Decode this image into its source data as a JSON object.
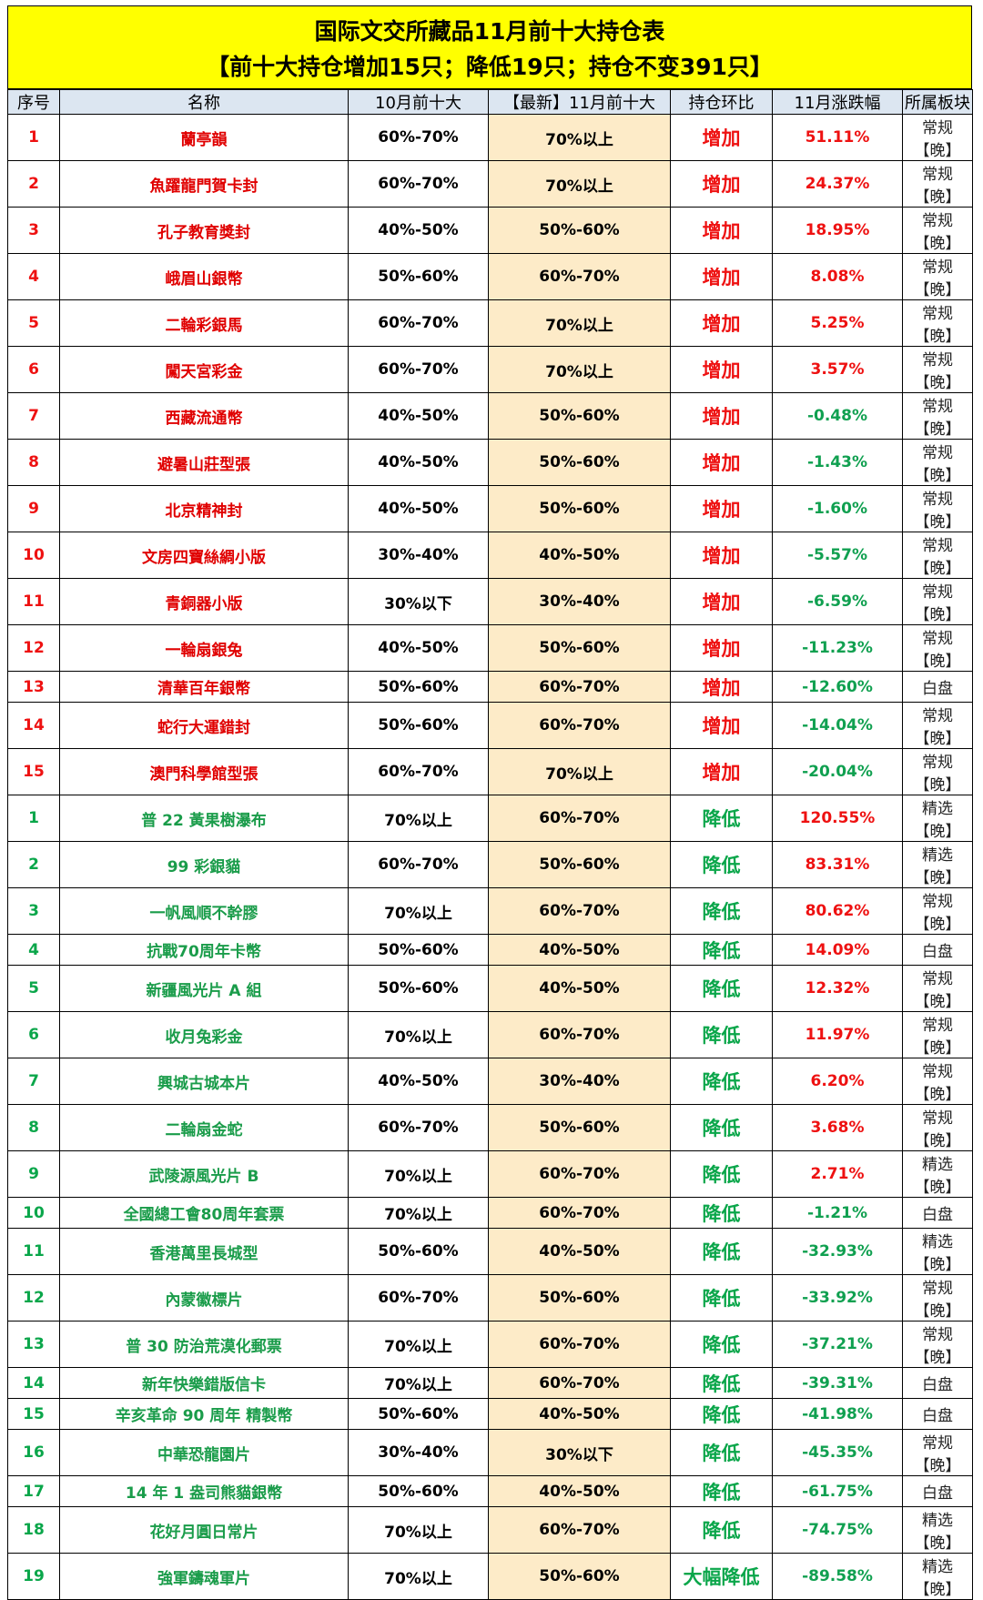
{
  "header": {
    "title": "国际文交所藏品11月前十大持仓表",
    "subtitle": "【前十大持仓增加15只；降低19只；持仓不变391只】"
  },
  "columns": [
    "序号",
    "名称",
    "10月前十大",
    "【最新】11月前十大",
    "持仓环比",
    "11月涨跌幅",
    "所属板块"
  ],
  "colors": {
    "title_bg": "#ffff00",
    "header_bg": "#dce6f1",
    "latest_bg": "#fdebc8",
    "up": "#ee1111",
    "down": "#0aa64a"
  },
  "rows": [
    {
      "idx": "1",
      "name": "蘭亭韻",
      "oct": "60%-70%",
      "nov": "70%以上",
      "change": "增加",
      "pct": "51.11%",
      "sector": "常规【晚】",
      "group": "inc",
      "dir": "up"
    },
    {
      "idx": "2",
      "name": "魚躍龍門賀卡封",
      "oct": "60%-70%",
      "nov": "70%以上",
      "change": "增加",
      "pct": "24.37%",
      "sector": "常规【晚】",
      "group": "inc",
      "dir": "up"
    },
    {
      "idx": "3",
      "name": "孔子教育獎封",
      "oct": "40%-50%",
      "nov": "50%-60%",
      "change": "增加",
      "pct": "18.95%",
      "sector": "常规【晚】",
      "group": "inc",
      "dir": "up"
    },
    {
      "idx": "4",
      "name": "峨眉山銀幣",
      "oct": "50%-60%",
      "nov": "60%-70%",
      "change": "增加",
      "pct": "8.08%",
      "sector": "常规【晚】",
      "group": "inc",
      "dir": "up"
    },
    {
      "idx": "5",
      "name": "二輪彩銀馬",
      "oct": "60%-70%",
      "nov": "70%以上",
      "change": "增加",
      "pct": "5.25%",
      "sector": "常规【晚】",
      "group": "inc",
      "dir": "up"
    },
    {
      "idx": "6",
      "name": "闖天宮彩金",
      "oct": "60%-70%",
      "nov": "70%以上",
      "change": "增加",
      "pct": "3.57%",
      "sector": "常规【晚】",
      "group": "inc",
      "dir": "up"
    },
    {
      "idx": "7",
      "name": "西藏流通幣",
      "oct": "40%-50%",
      "nov": "50%-60%",
      "change": "增加",
      "pct": "-0.48%",
      "sector": "常规【晚】",
      "group": "inc",
      "dir": "down"
    },
    {
      "idx": "8",
      "name": "避暑山莊型張",
      "oct": "40%-50%",
      "nov": "50%-60%",
      "change": "增加",
      "pct": "-1.43%",
      "sector": "常规【晚】",
      "group": "inc",
      "dir": "down"
    },
    {
      "idx": "9",
      "name": "北京精神封",
      "oct": "40%-50%",
      "nov": "50%-60%",
      "change": "增加",
      "pct": "-1.60%",
      "sector": "常规【晚】",
      "group": "inc",
      "dir": "down"
    },
    {
      "idx": "10",
      "name": "文房四寶絲綢小版",
      "oct": "30%-40%",
      "nov": "40%-50%",
      "change": "增加",
      "pct": "-5.57%",
      "sector": "常规【晚】",
      "group": "inc",
      "dir": "down"
    },
    {
      "idx": "11",
      "name": "青銅器小版",
      "oct": "30%以下",
      "nov": "30%-40%",
      "change": "增加",
      "pct": "-6.59%",
      "sector": "常规【晚】",
      "group": "inc",
      "dir": "down"
    },
    {
      "idx": "12",
      "name": "一輪扇銀兔",
      "oct": "40%-50%",
      "nov": "50%-60%",
      "change": "增加",
      "pct": "-11.23%",
      "sector": "常规【晚】",
      "group": "inc",
      "dir": "down"
    },
    {
      "idx": "13",
      "name": "清華百年銀幣",
      "oct": "50%-60%",
      "nov": "60%-70%",
      "change": "增加",
      "pct": "-12.60%",
      "sector": "白盘",
      "group": "inc",
      "dir": "down"
    },
    {
      "idx": "14",
      "name": "蛇行大運錯封",
      "oct": "50%-60%",
      "nov": "60%-70%",
      "change": "增加",
      "pct": "-14.04%",
      "sector": "常规【晚】",
      "group": "inc",
      "dir": "down"
    },
    {
      "idx": "15",
      "name": "澳門科學館型張",
      "oct": "60%-70%",
      "nov": "70%以上",
      "change": "增加",
      "pct": "-20.04%",
      "sector": "常规【晚】",
      "group": "inc",
      "dir": "down"
    },
    {
      "idx": "1",
      "name": "普 22 黃果樹瀑布",
      "oct": "70%以上",
      "nov": "60%-70%",
      "change": "降低",
      "pct": "120.55%",
      "sector": "精选【晚】",
      "group": "dec",
      "dir": "up"
    },
    {
      "idx": "2",
      "name": "99 彩銀貓",
      "oct": "60%-70%",
      "nov": "50%-60%",
      "change": "降低",
      "pct": "83.31%",
      "sector": "精选【晚】",
      "group": "dec",
      "dir": "up"
    },
    {
      "idx": "3",
      "name": "一帆風順不幹膠",
      "oct": "70%以上",
      "nov": "60%-70%",
      "change": "降低",
      "pct": "80.62%",
      "sector": "常规【晚】",
      "group": "dec",
      "dir": "up"
    },
    {
      "idx": "4",
      "name": "抗戰70周年卡幣",
      "oct": "50%-60%",
      "nov": "40%-50%",
      "change": "降低",
      "pct": "14.09%",
      "sector": "白盘",
      "group": "dec",
      "dir": "up"
    },
    {
      "idx": "5",
      "name": "新疆風光片 A 組",
      "oct": "50%-60%",
      "nov": "40%-50%",
      "change": "降低",
      "pct": "12.32%",
      "sector": "常规【晚】",
      "group": "dec",
      "dir": "up"
    },
    {
      "idx": "6",
      "name": "收月兔彩金",
      "oct": "70%以上",
      "nov": "60%-70%",
      "change": "降低",
      "pct": "11.97%",
      "sector": "常规【晚】",
      "group": "dec",
      "dir": "up"
    },
    {
      "idx": "7",
      "name": "興城古城本片",
      "oct": "40%-50%",
      "nov": "30%-40%",
      "change": "降低",
      "pct": "6.20%",
      "sector": "常规【晚】",
      "group": "dec",
      "dir": "up"
    },
    {
      "idx": "8",
      "name": "二輪扇金蛇",
      "oct": "60%-70%",
      "nov": "50%-60%",
      "change": "降低",
      "pct": "3.68%",
      "sector": "常规【晚】",
      "group": "dec",
      "dir": "up"
    },
    {
      "idx": "9",
      "name": "武陵源風光片 B",
      "oct": "70%以上",
      "nov": "60%-70%",
      "change": "降低",
      "pct": "2.71%",
      "sector": "精选【晚】",
      "group": "dec",
      "dir": "up"
    },
    {
      "idx": "10",
      "name": "全國總工會80周年套票",
      "oct": "70%以上",
      "nov": "60%-70%",
      "change": "降低",
      "pct": "-1.21%",
      "sector": "白盘",
      "group": "dec",
      "dir": "down"
    },
    {
      "idx": "11",
      "name": "香港萬里長城型",
      "oct": "50%-60%",
      "nov": "40%-50%",
      "change": "降低",
      "pct": "-32.93%",
      "sector": "精选【晚】",
      "group": "dec",
      "dir": "down"
    },
    {
      "idx": "12",
      "name": "內蒙徽標片",
      "oct": "60%-70%",
      "nov": "50%-60%",
      "change": "降低",
      "pct": "-33.92%",
      "sector": "常规【晚】",
      "group": "dec",
      "dir": "down"
    },
    {
      "idx": "13",
      "name": "普 30 防治荒漠化郵票",
      "oct": "70%以上",
      "nov": "60%-70%",
      "change": "降低",
      "pct": "-37.21%",
      "sector": "常规【晚】",
      "group": "dec",
      "dir": "down"
    },
    {
      "idx": "14",
      "name": "新年快樂錯版信卡",
      "oct": "70%以上",
      "nov": "60%-70%",
      "change": "降低",
      "pct": "-39.31%",
      "sector": "白盘",
      "group": "dec",
      "dir": "down"
    },
    {
      "idx": "15",
      "name": "辛亥革命 90 周年 精製幣",
      "oct": "50%-60%",
      "nov": "40%-50%",
      "change": "降低",
      "pct": "-41.98%",
      "sector": "白盘",
      "group": "dec",
      "dir": "down"
    },
    {
      "idx": "16",
      "name": "中華恐龍園片",
      "oct": "30%-40%",
      "nov": "30%以下",
      "change": "降低",
      "pct": "-45.35%",
      "sector": "常规【晚】",
      "group": "dec",
      "dir": "down"
    },
    {
      "idx": "17",
      "name": "14 年 1 盎司熊貓銀幣",
      "oct": "50%-60%",
      "nov": "40%-50%",
      "change": "降低",
      "pct": "-61.75%",
      "sector": "白盘",
      "group": "dec",
      "dir": "down"
    },
    {
      "idx": "18",
      "name": "花好月圓日常片",
      "oct": "70%以上",
      "nov": "60%-70%",
      "change": "降低",
      "pct": "-74.75%",
      "sector": "精选【晚】",
      "group": "dec",
      "dir": "down"
    },
    {
      "idx": "19",
      "name": "強軍鑄魂軍片",
      "oct": "70%以上",
      "nov": "50%-60%",
      "change": "大幅降低",
      "pct": "-89.58%",
      "sector": "精选【晚】",
      "group": "dec",
      "dir": "down"
    }
  ]
}
